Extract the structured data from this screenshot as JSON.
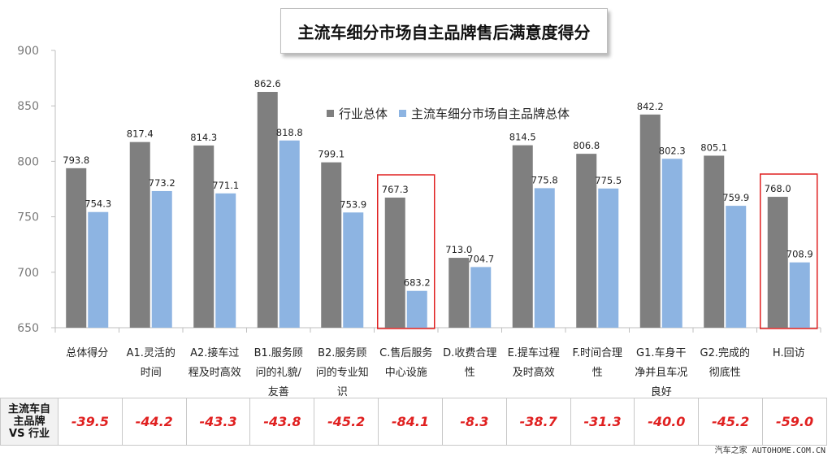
{
  "chart_data": {
    "type": "bar",
    "title": "主流车细分市场自主品牌售后满意度得分",
    "ylim": [
      650,
      900
    ],
    "yticks": [
      650,
      700,
      750,
      800,
      850,
      900
    ],
    "categories": [
      "总体得分",
      "A1.灵活的时间",
      "A2.接车过程及时高效",
      "B1.服务顾问的礼貌/友善",
      "B2.服务顾问的专业知识",
      "C.售后服务中心设施",
      "D.收费合理性",
      "E.提车过程及时高效",
      "F.时间合理性",
      "G1.车身干净并且车况良好",
      "G2.完成的彻底性",
      "H.回访"
    ],
    "category_lines": [
      [
        "总体得分"
      ],
      [
        "A1.灵活的",
        "时间"
      ],
      [
        "A2.接车过",
        "程及时高效"
      ],
      [
        "B1.服务顾",
        "问的礼貌/",
        "友善"
      ],
      [
        "B2.服务顾",
        "问的专业知",
        "识"
      ],
      [
        "C.售后服务",
        "中心设施"
      ],
      [
        "D.收费合理",
        "性"
      ],
      [
        "E.提车过程",
        "及时高效"
      ],
      [
        "F.时间合理",
        "性"
      ],
      [
        "G1.车身干",
        "净并且车况",
        "良好"
      ],
      [
        "G2.完成的",
        "彻底性"
      ],
      [
        "H.回访"
      ]
    ],
    "series": [
      {
        "name": "行业总体",
        "color": "#7f7f7f",
        "values": [
          793.8,
          817.4,
          814.3,
          862.6,
          799.1,
          767.3,
          713.0,
          814.5,
          806.8,
          842.2,
          805.1,
          768.0
        ],
        "labels": [
          "793.8",
          "817.4",
          "814.3",
          "862.6",
          "799.1",
          "767.3",
          "713.0",
          "814.5",
          "806.8",
          "842.2",
          "805.1",
          "768.0"
        ]
      },
      {
        "name": "主流车细分市场自主品牌总体",
        "color": "#8db4e2",
        "values": [
          754.3,
          773.2,
          771.1,
          818.8,
          753.9,
          683.2,
          704.7,
          775.8,
          775.5,
          802.3,
          759.9,
          708.9
        ],
        "labels": [
          "754.3",
          "773.2",
          "771.1",
          "818.8",
          "753.9",
          "683.2",
          "704.7",
          "775.8",
          "775.5",
          "802.3",
          "759.9",
          "708.9"
        ]
      }
    ],
    "highlighted_categories": [
      5,
      11
    ],
    "highlight_color": "#e02020",
    "legend_position": "top-center",
    "grid": false
  },
  "diff_table": {
    "header_lines": [
      "主流车自",
      "主品牌",
      "VS 行业"
    ],
    "values": [
      "-39.5",
      "-44.2",
      "-43.3",
      "-43.8",
      "-45.2",
      "-84.1",
      "-8.3",
      "-38.7",
      "-31.3",
      "-40.0",
      "-45.2",
      "-59.0"
    ],
    "value_color": "#e02020"
  },
  "watermark": "汽车之家 AUTOHOME.COM.CN"
}
